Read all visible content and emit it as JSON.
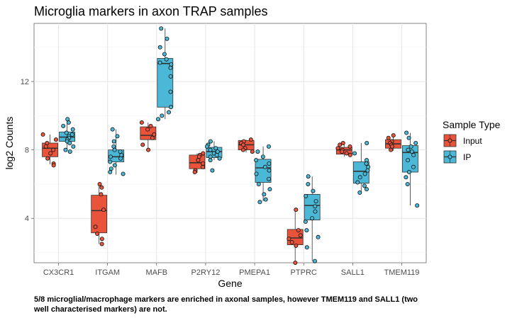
{
  "chart_data": {
    "type": "boxplot",
    "title": "Microglia markers in axon TRAP samples",
    "xlabel": "Gene",
    "ylabel": "log2 Counts",
    "ylim": [
      1.4,
      15.4
    ],
    "yticks": [
      4,
      8,
      12
    ],
    "grid": true,
    "legend": {
      "title": "Sample Type",
      "placement": "right",
      "entries": [
        {
          "name": "Input",
          "color": "#e8533a"
        },
        {
          "name": "IP",
          "color": "#4ab8d6"
        }
      ]
    },
    "categories": [
      "CX3CR1",
      "ITGAM",
      "MAFB",
      "P2RY12",
      "PMEPA1",
      "PTPRC",
      "SALL1",
      "TMEM119"
    ],
    "series": [
      {
        "name": "Input",
        "color": "#e8533a",
        "boxes": [
          {
            "q1": 7.6,
            "median": 8.1,
            "q3": 8.4,
            "whisker_low": 7.15,
            "whisker_high": 8.9,
            "points": [
              8.9,
              8.6,
              8.4,
              8.2,
              8.0,
              7.8,
              7.5,
              7.2,
              7.1
            ]
          },
          {
            "q1": 3.15,
            "median": 4.45,
            "q3": 5.35,
            "whisker_low": 2.5,
            "whisker_high": 6.0,
            "points": [
              6.0,
              5.8,
              5.4,
              4.5,
              3.5,
              3.1,
              2.8,
              2.5
            ]
          },
          {
            "q1": 8.6,
            "median": 8.85,
            "q3": 9.35,
            "whisker_low": 7.95,
            "whisker_high": 9.6,
            "points": [
              9.6,
              9.4,
              9.2,
              8.9,
              8.7,
              8.3,
              8.0
            ]
          },
          {
            "q1": 6.9,
            "median": 7.25,
            "q3": 7.7,
            "whisker_low": 6.65,
            "whisker_high": 7.8,
            "points": [
              7.8,
              7.7,
              7.6,
              7.4,
              7.2,
              7.0,
              6.8,
              6.7
            ]
          },
          {
            "q1": 8.0,
            "median": 8.3,
            "q3": 8.55,
            "whisker_low": 7.85,
            "whisker_high": 8.6,
            "points": [
              8.6,
              8.5,
              8.4,
              8.3,
              8.1,
              8.0,
              7.9
            ]
          },
          {
            "q1": 2.45,
            "median": 2.85,
            "q3": 3.35,
            "whisker_low": 1.4,
            "whisker_high": 4.55,
            "points": [
              4.5,
              3.3,
              3.0,
              2.8,
              2.6,
              2.4,
              1.4
            ]
          },
          {
            "q1": 7.75,
            "median": 8.0,
            "q3": 8.15,
            "whisker_low": 7.6,
            "whisker_high": 8.4,
            "points": [
              8.4,
              8.3,
              8.2,
              8.1,
              8.0,
              7.9,
              7.8,
              7.7
            ]
          },
          {
            "q1": 8.1,
            "median": 8.35,
            "q3": 8.6,
            "whisker_low": 7.95,
            "whisker_high": 8.85,
            "points": [
              8.85,
              8.7,
              8.5,
              8.4,
              8.3,
              8.2,
              8.0
            ]
          }
        ]
      },
      {
        "name": "IP",
        "color": "#4ab8d6",
        "boxes": [
          {
            "q1": 8.5,
            "median": 8.75,
            "q3": 9.05,
            "whisker_low": 7.95,
            "whisker_high": 9.8,
            "points": [
              9.8,
              9.6,
              9.4,
              9.2,
              9.0,
              8.9,
              8.8,
              8.7,
              8.6,
              8.5,
              8.4,
              8.2,
              8.0,
              7.9
            ]
          },
          {
            "q1": 7.3,
            "median": 7.6,
            "q3": 8.0,
            "whisker_low": 6.55,
            "whisker_high": 9.2,
            "points": [
              9.2,
              8.8,
              8.5,
              8.2,
              8.0,
              7.9,
              7.7,
              7.6,
              7.5,
              7.3,
              7.1,
              6.9,
              6.7,
              6.6
            ]
          },
          {
            "q1": 10.5,
            "median": 13.05,
            "q3": 13.35,
            "whisker_low": 9.8,
            "whisker_high": 15.1,
            "points": [
              15.1,
              14.5,
              14.0,
              13.6,
              13.3,
              13.1,
              13.0,
              12.8,
              12.3,
              11.4,
              10.5,
              10.2,
              10.0,
              9.8
            ]
          },
          {
            "q1": 7.55,
            "median": 7.9,
            "q3": 8.15,
            "whisker_low": 7.4,
            "whisker_high": 8.5,
            "points": [
              8.5,
              8.3,
              8.2,
              8.1,
              8.0,
              7.9,
              7.8,
              7.7,
              7.6,
              7.5,
              7.4,
              6.8
            ]
          },
          {
            "q1": 6.1,
            "median": 6.95,
            "q3": 7.45,
            "whisker_low": 5.0,
            "whisker_high": 8.2,
            "points": [
              8.2,
              7.9,
              7.6,
              7.4,
              7.2,
              7.0,
              6.8,
              6.6,
              6.3,
              6.0,
              5.7,
              5.4,
              5.1,
              4.95
            ]
          },
          {
            "q1": 3.9,
            "median": 4.75,
            "q3": 5.4,
            "whisker_low": 1.5,
            "whisker_high": 6.45,
            "points": [
              6.45,
              6.0,
              5.6,
              5.3,
              5.0,
              4.7,
              4.4,
              4.0,
              3.8,
              3.3,
              2.9,
              2.3,
              1.5
            ]
          },
          {
            "q1": 6.05,
            "median": 6.75,
            "q3": 7.3,
            "whisker_low": 5.5,
            "whisker_high": 8.4,
            "points": [
              8.4,
              7.8,
              7.4,
              7.2,
              7.0,
              6.8,
              6.6,
              6.4,
              6.1,
              5.9,
              5.7,
              5.5
            ]
          },
          {
            "q1": 6.7,
            "median": 7.85,
            "q3": 8.25,
            "whisker_low": 4.75,
            "whisker_high": 9.0,
            "points": [
              9.0,
              8.7,
              8.4,
              8.2,
              8.0,
              7.9,
              7.7,
              7.4,
              7.0,
              6.7,
              6.4,
              6.0,
              4.75
            ]
          }
        ]
      }
    ]
  },
  "caption": "5/8 microglial/macrophage markers are enriched in axonal samples, however TMEM119 and SALL1 (two well characterised markers) are not."
}
